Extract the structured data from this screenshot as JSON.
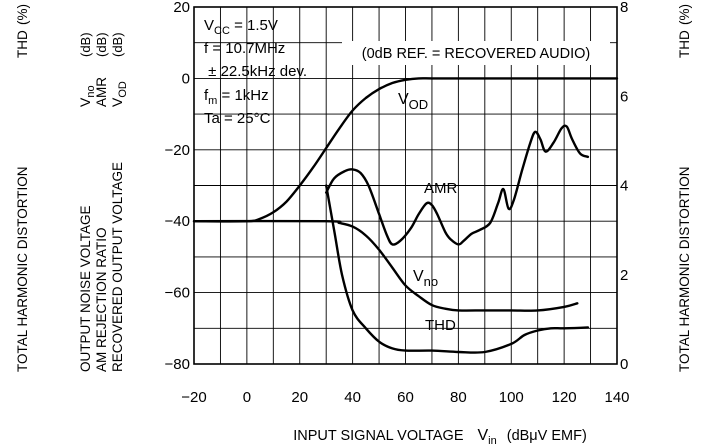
{
  "chart_data": {
    "type": "line",
    "x_axis": {
      "label": "INPUT SIGNAL VOLTAGE",
      "symbol": "V",
      "symbol_sub": "in",
      "unit": "(dBμV EMF)",
      "range": [
        -20,
        140
      ],
      "ticks": [
        -20,
        0,
        20,
        40,
        60,
        80,
        100,
        120,
        140
      ]
    },
    "left_axis": {
      "range": [
        -80,
        20
      ],
      "ticks": [
        -80,
        -60,
        -40,
        -20,
        0,
        20
      ],
      "labels": [
        "OUTPUT NOISE VOLTAGE",
        "AM REJECTION RATIO",
        "RECOVERED OUTPUT VOLTAGE"
      ],
      "symbols": [
        {
          "main": "V",
          "sub": "no",
          "unit": "(dB)"
        },
        {
          "main": "AMR",
          "sub": "",
          "unit": "(dB)"
        },
        {
          "main": "V",
          "sub": "OD",
          "unit": "(dB)"
        }
      ],
      "thd_label": "TOTAL HARMONIC DISTORTION",
      "thd_symbol": "THD",
      "thd_unit": "(%)"
    },
    "right_axis": {
      "range": [
        0,
        8
      ],
      "ticks": [
        0,
        2,
        4,
        6,
        8
      ],
      "label": "TOTAL HARMONIC DISTORTION",
      "symbol": "THD",
      "unit": "(%)"
    },
    "conditions": [
      {
        "main": "V",
        "sub": "CC",
        "rest": " = 1.5V"
      },
      {
        "main": "f = 10.7MHz",
        "sub": "",
        "rest": ""
      },
      {
        "main": " ± 22.5kHz dev.",
        "sub": "",
        "rest": ""
      },
      {
        "main": "f",
        "sub": "m",
        "rest": " = 1kHz"
      },
      {
        "main": "Ta = 25°C",
        "sub": "",
        "rest": ""
      }
    ],
    "reference_note": "(0dB REF. = RECOVERED AUDIO)",
    "grid": true,
    "series": [
      {
        "name": "VOD",
        "label_main": "V",
        "label_sub": "OD",
        "axis": "left",
        "x": [
          -20,
          0,
          5,
          10,
          15,
          20,
          25,
          30,
          35,
          40,
          45,
          50,
          55,
          60,
          65,
          70,
          80,
          100,
          120,
          140
        ],
        "y": [
          -40,
          -40,
          -39.3,
          -37.5,
          -34.5,
          -30,
          -25,
          -19.5,
          -14,
          -9,
          -5.5,
          -3,
          -1.3,
          -0.4,
          0,
          0,
          0,
          0,
          0,
          0
        ]
      },
      {
        "name": "AMR",
        "label_main": "AMR",
        "label_sub": "",
        "axis": "left",
        "x": [
          30,
          33,
          37,
          40,
          43,
          46,
          50,
          53,
          55,
          58,
          62,
          65,
          68,
          70,
          72,
          75,
          77,
          80,
          82,
          85,
          88,
          92,
          95,
          97,
          99,
          101,
          104,
          107,
          109,
          111,
          113,
          116,
          119,
          121,
          123,
          126,
          129
        ],
        "y": [
          -32,
          -28,
          -26,
          -25.5,
          -26.5,
          -30,
          -38,
          -44,
          -46.5,
          -45.5,
          -42,
          -38,
          -35,
          -35.5,
          -38,
          -43,
          -45,
          -46.5,
          -45.5,
          -43.5,
          -42.5,
          -40.5,
          -35,
          -31,
          -36.5,
          -34,
          -26,
          -18.5,
          -15,
          -17,
          -20.5,
          -18,
          -14,
          -13.5,
          -17,
          -21,
          -22
        ]
      },
      {
        "name": "Vno",
        "label_main": "V",
        "label_sub": "no",
        "axis": "left",
        "x": [
          -20,
          30,
          35,
          40,
          45,
          50,
          55,
          60,
          65,
          70,
          75,
          80,
          90,
          100,
          110,
          120,
          125
        ],
        "y": [
          -40,
          -40,
          -40.5,
          -41.5,
          -44,
          -48,
          -53,
          -58,
          -61,
          -63.5,
          -64.5,
          -65,
          -65,
          -65,
          -65,
          -64,
          -63
        ]
      },
      {
        "name": "THD",
        "label_main": "THD",
        "label_sub": "",
        "axis": "right",
        "x": [
          30,
          33,
          36,
          40,
          45,
          50,
          55,
          60,
          70,
          80,
          90,
          100,
          105,
          110,
          115,
          120,
          129
        ],
        "y": [
          4,
          3,
          2,
          1.2,
          0.8,
          0.5,
          0.35,
          0.3,
          0.3,
          0.27,
          0.27,
          0.45,
          0.65,
          0.75,
          0.8,
          0.8,
          0.82
        ]
      }
    ]
  }
}
